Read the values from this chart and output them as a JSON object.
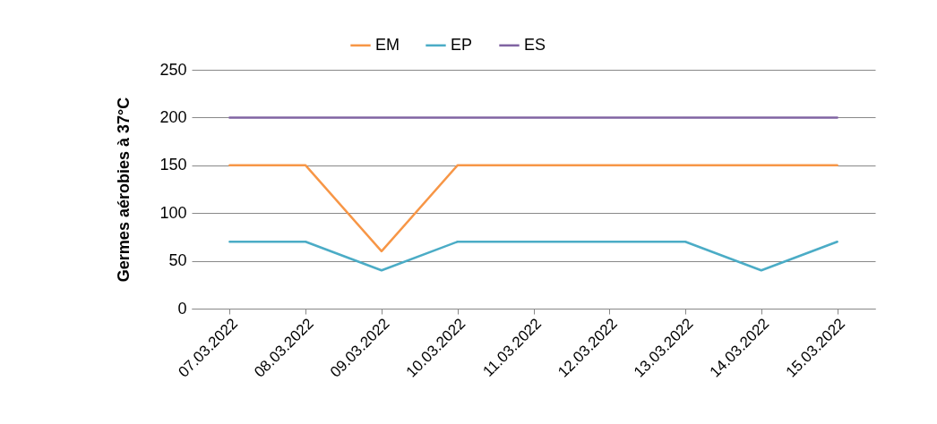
{
  "chart_data": {
    "type": "line",
    "ylabel": "Germes aérobies à 37°C",
    "categories": [
      "07.03.2022",
      "08.03.2022",
      "09.03.2022",
      "10.03.2022",
      "11.03.2022",
      "12.03.2022",
      "13.03.2022",
      "14.03.2022",
      "15.03.2022"
    ],
    "series": [
      {
        "name": "EM",
        "color": "#f79646",
        "values": [
          150,
          150,
          60,
          150,
          150,
          150,
          150,
          150,
          150
        ]
      },
      {
        "name": "EP",
        "color": "#4bacc6",
        "values": [
          70,
          70,
          40,
          70,
          70,
          70,
          70,
          40,
          70
        ]
      },
      {
        "name": "ES",
        "color": "#8064a2",
        "values": [
          200,
          200,
          200,
          200,
          200,
          200,
          200,
          200,
          200
        ]
      }
    ],
    "ylim": [
      0,
      250
    ],
    "yticks": [
      0,
      50,
      100,
      150,
      200,
      250
    ],
    "grid": "y",
    "legend": "top",
    "marker": "none",
    "line_style": "solid"
  }
}
